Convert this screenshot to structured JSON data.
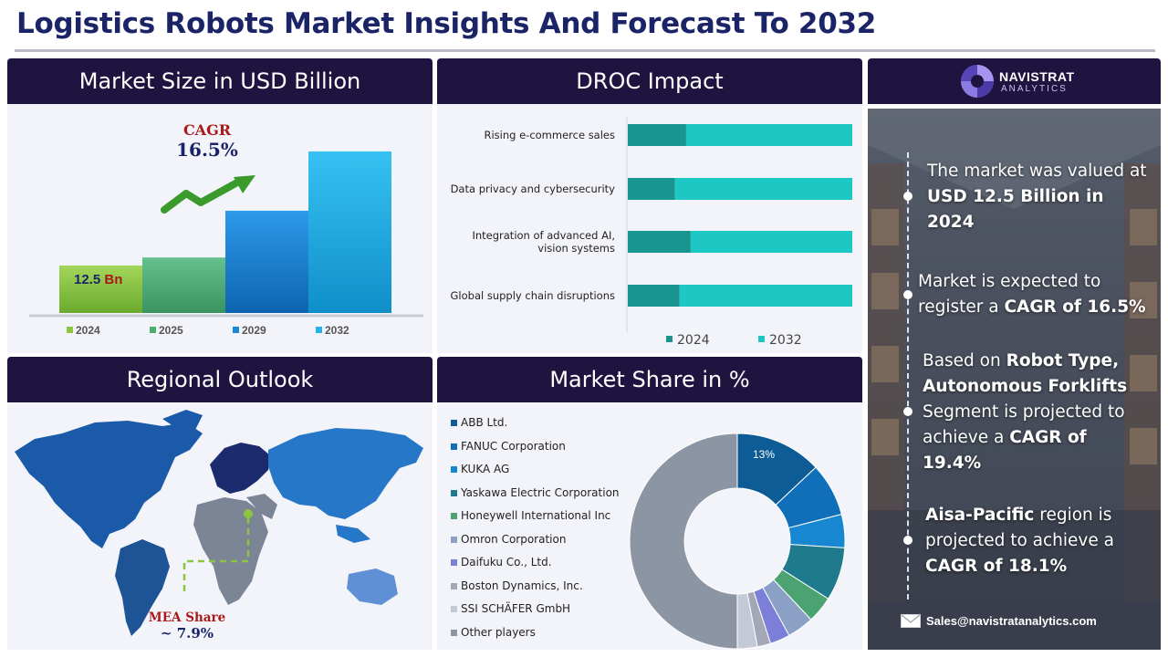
{
  "title": "Logistics Robots Market Insights And Forecast To 2032",
  "market_size": {
    "heading": "Market Size in USD Billion",
    "cagr_label": "CAGR",
    "cagr_value": "16.5%",
    "first_value_number": "12.5",
    "first_value_unit": "Bn",
    "years": [
      "2024",
      "2025",
      "2029",
      "2032"
    ],
    "colors": [
      "#8cc63f",
      "#4caf6e",
      "#1a86d8",
      "#27b3ea"
    ]
  },
  "droc": {
    "heading": "DROC Impact",
    "legend": [
      "2024",
      "2032"
    ]
  },
  "regional": {
    "heading": "Regional Outlook",
    "callout_label": "MEA Share",
    "callout_value": "~ 7.9%"
  },
  "share": {
    "heading": "Market Share in %",
    "top_slice_label": "13%"
  },
  "brand": {
    "name": "NAVISTRAT",
    "sub": "ANALYTICS"
  },
  "insights": {
    "i1_a": "The market was valued at",
    "i1_b": "USD 12.5 Billion in",
    "i1_c": "2024",
    "i2_a": "Market is expected to",
    "i2_b": "register a ",
    "i2_c": "CAGR of 16.5%",
    "i3_a": "Based on ",
    "i3_b": "Robot Type,",
    "i3_c": "Autonomous Forklifts",
    "i3_d": "Segment is projected to",
    "i3_e": "achieve a ",
    "i3_f": "CAGR of",
    "i3_g": "19.4%",
    "i4_a": "Aisa-Pacific",
    "i4_b": " region is",
    "i4_c": "projected to achieve a",
    "i4_d": "CAGR of 18.1%"
  },
  "contact": {
    "email": "Sales@navistratanalytics.com"
  },
  "chart_data": [
    {
      "type": "bar",
      "categories": [
        "2024",
        "2025",
        "2029",
        "2032"
      ],
      "values": [
        12.5,
        14.6,
        26.9,
        42.5
      ],
      "ylim": [
        0,
        48
      ]
    },
    {
      "type": "bar",
      "orientation": "horizontal-stacked",
      "categories": [
        "Rising e-commerce sales",
        "Data privacy and cybersecurity",
        "Integration of advanced AI, vision systems",
        "Global supply chain disruptions"
      ],
      "series": [
        {
          "name": "2024",
          "values": [
            0.26,
            0.21,
            0.28,
            0.23
          ],
          "color": "#19948f"
        },
        {
          "name": "2032",
          "values": [
            0.74,
            0.79,
            0.72,
            0.77
          ],
          "color": "#1cc7c4"
        }
      ]
    },
    {
      "type": "pie",
      "style": "donut",
      "labels": [
        "ABB Ltd.",
        "FANUC Corporation",
        "KUKA AG",
        "Yaskawa Electric Corporation",
        "Honeywell International Inc",
        "Omron Corporation",
        "Daifuku Co., Ltd.",
        "Boston Dynamics, Inc.",
        "SSI SCHÄFER GmbH",
        "Other players"
      ],
      "values": [
        13,
        8,
        5,
        8,
        4,
        4,
        3,
        2,
        3,
        50
      ],
      "colors": [
        "#0d5c96",
        "#0f6fb8",
        "#1687d0",
        "#1e7a8c",
        "#4aa371",
        "#8aa0c4",
        "#7c7fd8",
        "#a3a7b6",
        "#c4c9d6",
        "#8c95a3"
      ]
    }
  ]
}
